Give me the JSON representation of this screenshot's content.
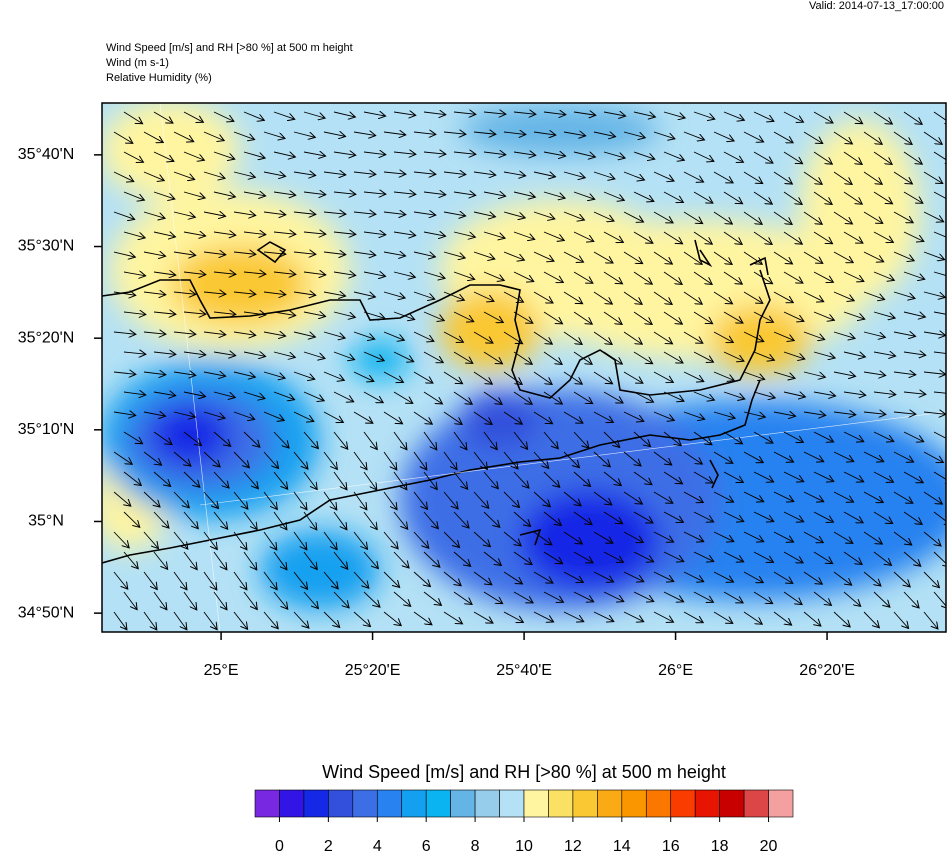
{
  "header": {
    "valid": "Valid: 2014-07-13_17:00:00",
    "lines": [
      "Wind Speed [m/s] and RH [>80 %] at 500 m height",
      "Wind   (m s-1)",
      "Relative Humidity   (%)"
    ]
  },
  "map": {
    "xlim": [
      24.738,
      26.595
    ],
    "ylim": [
      34.799,
      35.761
    ],
    "xticks": [
      {
        "value": 25.0,
        "label": "25°E"
      },
      {
        "value": 25.3333,
        "label": "25°20'E"
      },
      {
        "value": 25.6667,
        "label": "25°40'E"
      },
      {
        "value": 26.0,
        "label": "26°E"
      },
      {
        "value": 26.3333,
        "label": "26°20'E"
      }
    ],
    "yticks": [
      {
        "value": 34.8333,
        "label": "34°50'N"
      },
      {
        "value": 35.0,
        "label": "35°N"
      },
      {
        "value": 35.1667,
        "label": "35°10'N"
      },
      {
        "value": 35.3333,
        "label": "35°20'N"
      },
      {
        "value": 35.5,
        "label": "35°30'N"
      },
      {
        "value": 35.6667,
        "label": "35°40'N"
      }
    ]
  },
  "colorbar": {
    "title": "Wind Speed [m/s] and RH [>80 %] at 500 m height",
    "colors": [
      "#7828e0",
      "#3214e6",
      "#1428e6",
      "#3250dc",
      "#3c6ee6",
      "#2882f0",
      "#14a0f0",
      "#0ab4f0",
      "#64b4e6",
      "#96cdeb",
      "#b4e1f5",
      "#fff5a0",
      "#fae164",
      "#fac832",
      "#faaa14",
      "#fa9600",
      "#fa7800",
      "#fa3c00",
      "#e61400",
      "#c80000",
      "#dc4646",
      "#f5a0a0"
    ],
    "ticks": [
      0,
      2,
      4,
      6,
      8,
      10,
      12,
      14,
      16,
      18,
      20
    ]
  }
}
